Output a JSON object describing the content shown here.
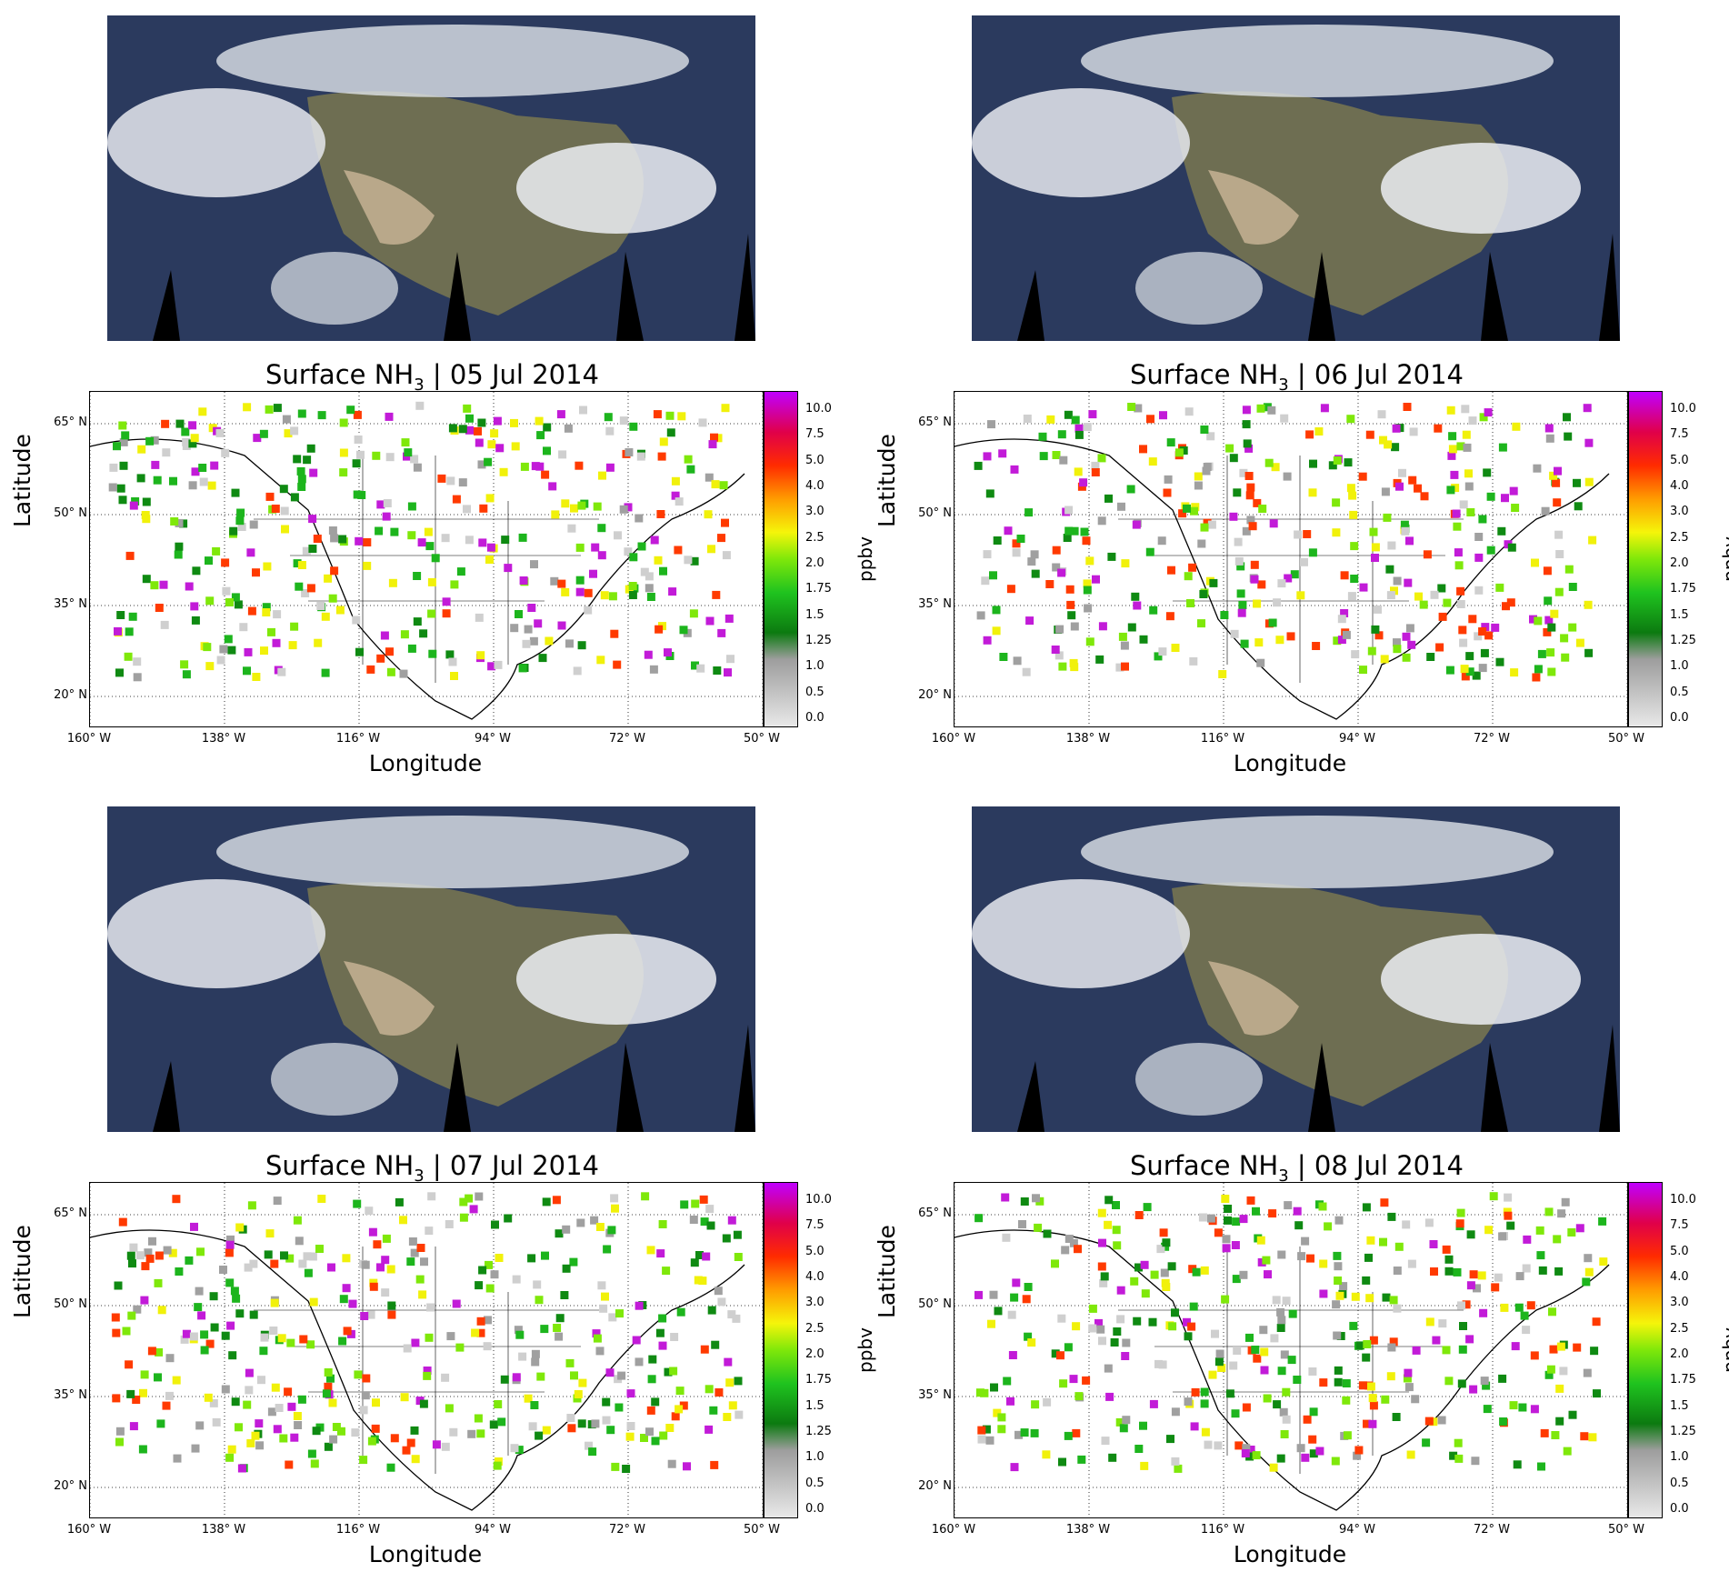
{
  "panels": [
    {
      "title_prefix": "Surface NH",
      "title_sub": "3",
      "title_suffix": " | 05 Jul 2014"
    },
    {
      "title_prefix": "Surface NH",
      "title_sub": "3",
      "title_suffix": " | 06 Jul 2014"
    },
    {
      "title_prefix": "Surface NH",
      "title_sub": "3",
      "title_suffix": " | 07 Jul 2014"
    },
    {
      "title_prefix": "Surface NH",
      "title_sub": "3",
      "title_suffix": " | 08 Jul 2014"
    }
  ],
  "axes": {
    "xlabel": "Longitude",
    "ylabel": "Latitude",
    "lat_ticks": [
      "65° N",
      "50° N",
      "35° N",
      "20° N"
    ],
    "lon_ticks": [
      "160° W",
      "138° W",
      "116° W",
      "94° W",
      "72° W",
      "50° W"
    ]
  },
  "colorbar": {
    "unit": "ppbv",
    "ticks": [
      "10.0",
      "7.5",
      "5.0",
      "4.0",
      "3.0",
      "2.5",
      "2.0",
      "1.75",
      "1.5",
      "1.25",
      "1.0",
      "0.5",
      "0.0"
    ]
  }
}
